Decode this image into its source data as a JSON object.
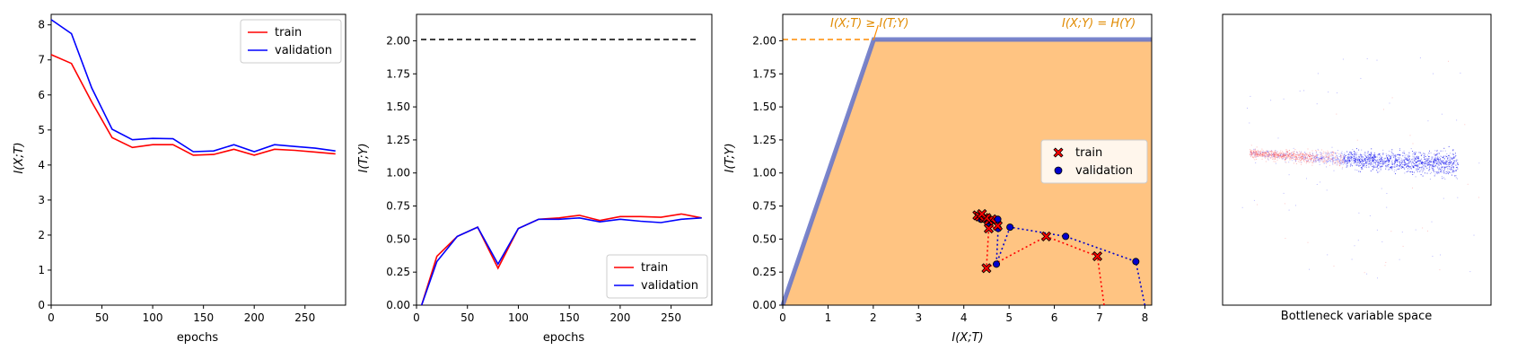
{
  "chart_data": [
    {
      "type": "line",
      "xlabel": "epochs",
      "ylabel": "I(X;T)",
      "xlim": [
        0,
        290
      ],
      "ylim": [
        0,
        8.3
      ],
      "xticks": [
        "0",
        "50",
        "100",
        "150",
        "200",
        "250"
      ],
      "yticks": [
        "0",
        "1",
        "2",
        "3",
        "4",
        "5",
        "6",
        "7",
        "8"
      ],
      "legend": "top-right",
      "series": [
        {
          "name": "train",
          "color": "#ff0000",
          "x": [
            0,
            20,
            40,
            60,
            80,
            100,
            120,
            140,
            160,
            180,
            200,
            220,
            240,
            260,
            280
          ],
          "y": [
            7.15,
            6.9,
            5.8,
            4.78,
            4.5,
            4.58,
            4.58,
            4.28,
            4.3,
            4.45,
            4.28,
            4.45,
            4.42,
            4.37,
            4.32
          ]
        },
        {
          "name": "validation",
          "color": "#0000ff",
          "x": [
            0,
            20,
            40,
            60,
            80,
            100,
            120,
            140,
            160,
            180,
            200,
            220,
            240,
            260,
            280
          ],
          "y": [
            8.15,
            7.75,
            6.2,
            5.02,
            4.72,
            4.76,
            4.75,
            4.38,
            4.4,
            4.58,
            4.38,
            4.58,
            4.53,
            4.48,
            4.4
          ]
        }
      ]
    },
    {
      "type": "line",
      "xlabel": "epochs",
      "ylabel": "I(T;Y)",
      "xlim": [
        0,
        290
      ],
      "ylim": [
        0,
        2.2
      ],
      "xticks": [
        "0",
        "50",
        "100",
        "150",
        "200",
        "250"
      ],
      "yticks": [
        "0.00",
        "0.25",
        "0.50",
        "0.75",
        "1.00",
        "1.25",
        "1.50",
        "1.75",
        "2.00"
      ],
      "legend": "bottom-right",
      "reference_line": {
        "y": 2.01,
        "color": "#000000",
        "style": "dashed"
      },
      "series": [
        {
          "name": "train",
          "color": "#ff0000",
          "x": [
            5,
            20,
            40,
            60,
            80,
            100,
            120,
            140,
            160,
            180,
            200,
            220,
            240,
            260,
            280
          ],
          "y": [
            0,
            0.37,
            0.52,
            0.59,
            0.28,
            0.58,
            0.65,
            0.66,
            0.68,
            0.64,
            0.67,
            0.67,
            0.665,
            0.69,
            0.66
          ]
        },
        {
          "name": "validation",
          "color": "#0000ff",
          "x": [
            5,
            20,
            40,
            60,
            80,
            100,
            120,
            140,
            160,
            180,
            200,
            220,
            240,
            260,
            280
          ],
          "y": [
            0,
            0.33,
            0.52,
            0.59,
            0.31,
            0.58,
            0.65,
            0.65,
            0.66,
            0.63,
            0.65,
            0.635,
            0.625,
            0.65,
            0.66
          ]
        }
      ]
    },
    {
      "type": "scatter",
      "xlabel": "I(X;T)",
      "ylabel": "I(T;Y)",
      "xlim": [
        0,
        8.15
      ],
      "ylim": [
        0,
        2.2
      ],
      "xticks": [
        "0",
        "1",
        "2",
        "3",
        "4",
        "5",
        "6",
        "7",
        "8"
      ],
      "yticks": [
        "0.00",
        "0.25",
        "0.50",
        "0.75",
        "1.00",
        "1.25",
        "1.50",
        "1.75",
        "2.00"
      ],
      "legend": "right",
      "region_color": "#ffc482",
      "boundary_color": "#6a78c8",
      "dashed_line": {
        "y": 2.01,
        "color": "#ff8c00"
      },
      "annotations": [
        {
          "text": "I(X;T) ≥ I(T;Y)",
          "color": "#e08a00",
          "position": "top-left"
        },
        {
          "text": "I(X;Y) = H(Y)",
          "color": "#e08a00",
          "position": "top-right"
        }
      ],
      "series": [
        {
          "name": "train",
          "marker": "x",
          "color": "#ff0000",
          "edge": "#000000",
          "x": [
            7.1,
            6.95,
            5.82,
            4.5,
            4.55,
            4.75,
            4.62,
            4.45,
            4.3,
            4.55,
            4.5,
            4.35,
            4.4
          ],
          "y": [
            0,
            0.37,
            0.52,
            0.28,
            0.58,
            0.6,
            0.65,
            0.66,
            0.68,
            0.64,
            0.66,
            0.67,
            0.69
          ]
        },
        {
          "name": "validation",
          "marker": "o",
          "color": "#0000cc",
          "edge": "#000000",
          "x": [
            8.0,
            7.8,
            6.25,
            5.02,
            4.72,
            4.76,
            4.75,
            4.38,
            4.4,
            4.58,
            4.38,
            4.58,
            4.53
          ],
          "y": [
            0,
            0.33,
            0.52,
            0.59,
            0.31,
            0.58,
            0.65,
            0.65,
            0.66,
            0.63,
            0.65,
            0.635,
            0.625
          ]
        }
      ]
    },
    {
      "type": "scatter",
      "xlabel": "Bottleneck variable space",
      "ylabel": "",
      "axes": "hidden",
      "series": [
        {
          "name": "train",
          "color": "#ff0000"
        },
        {
          "name": "validation",
          "color": "#0000ff"
        }
      ]
    }
  ]
}
